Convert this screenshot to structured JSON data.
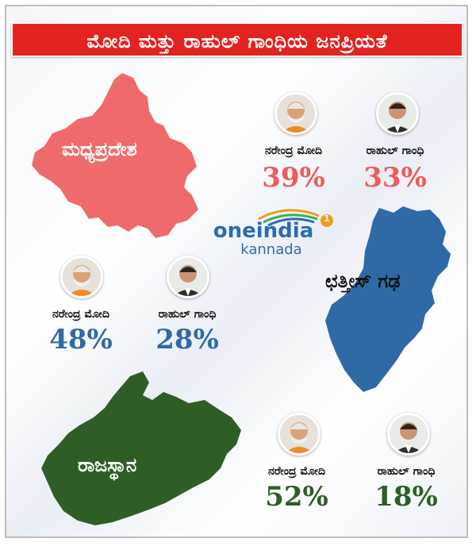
{
  "title": "ಮೋದಿ ಮತ್ತು ರಾಹುಲ್ ಗಾಂಧಿಯ ಜನಪ್ರಿಯತೆ",
  "logo": {
    "brand": "oneindia",
    "sub": "kannada",
    "badge": "1"
  },
  "colors": {
    "banner": "#e3231f",
    "red_state": "#ef6b6b",
    "blue_state": "#2f6aa6",
    "green_state": "#2e5e26"
  },
  "states": [
    {
      "name": "ಮಧ್ಯಪ್ರದೇಶ",
      "candidates": [
        {
          "name": "ನರೇಂದ್ರ ಮೋದಿ",
          "percent": "39%",
          "value": 39
        },
        {
          "name": "ರಾಹುಲ್ ಗಾಂಧಿ",
          "percent": "33%",
          "value": 33
        }
      ]
    },
    {
      "name": "ಛತ್ತೀಸ್ ಗಢ",
      "candidates": [
        {
          "name": "ನರೇಂದ್ರ ಮೋದಿ",
          "percent": "48%",
          "value": 48
        },
        {
          "name": "ರಾಹುಲ್ ಗಾಂಧಿ",
          "percent": "28%",
          "value": 28
        }
      ]
    },
    {
      "name": "ರಾಜಸ್ಥಾನ",
      "candidates": [
        {
          "name": "ನರೇಂದ್ರ ಮೋದಿ",
          "percent": "52%",
          "value": 52
        },
        {
          "name": "ರಾಹುಲ್ ಗಾಂಧಿ",
          "percent": "18%",
          "value": 18
        }
      ]
    }
  ]
}
